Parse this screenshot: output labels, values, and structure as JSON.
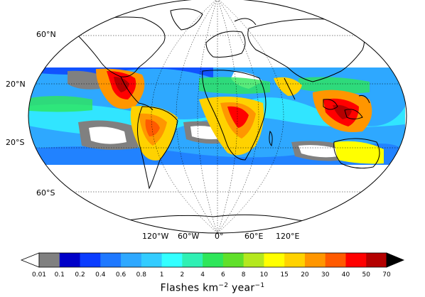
{
  "map": {
    "projection": "Robinson-like elliptical",
    "lat_labels": [
      "60°N",
      "20°N",
      "20°S",
      "60°S"
    ],
    "lon_labels": [
      "120°W",
      "60°W",
      "0°",
      "60°E",
      "120°E"
    ],
    "data_band": "38°N–38°S"
  },
  "colorbar": {
    "ticks": [
      "0.01",
      "0.1",
      "0.2",
      "0.4",
      "0.6",
      "0.8",
      "1",
      "2",
      "4",
      "6",
      "8",
      "10",
      "15",
      "20",
      "30",
      "40",
      "50",
      "70"
    ],
    "colors": [
      "#ffffff",
      "#808080",
      "#0000c8",
      "#0a3cff",
      "#1e78ff",
      "#2ea8ff",
      "#33ccff",
      "#33ffff",
      "#2ff0b4",
      "#2ee65a",
      "#60e02a",
      "#b4e81e",
      "#ffff00",
      "#ffd200",
      "#ff9600",
      "#ff5a00",
      "#ff0000",
      "#b40000",
      "#000000"
    ],
    "title_main": "Flashes km",
    "title_exp1": "−2",
    "title_year": " year",
    "title_exp2": "−1"
  }
}
